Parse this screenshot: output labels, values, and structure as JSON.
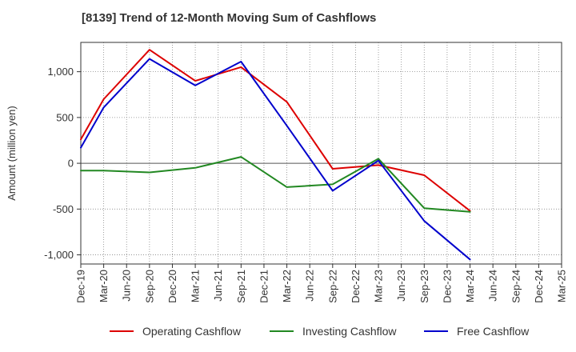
{
  "chart_data": {
    "type": "line",
    "title": "[8139]  Trend of 12-Month Moving Sum of Cashflows",
    "xlabel": "",
    "ylabel": "Amount (million yen)",
    "ylim": [
      -1100,
      1320
    ],
    "yticks": [
      1000,
      500,
      0,
      -500,
      -1000
    ],
    "ytick_labels": [
      "1,000",
      "500",
      "0",
      "-500",
      "-1,000"
    ],
    "categories": [
      "Dec-19",
      "Mar-20",
      "Jun-20",
      "Sep-20",
      "Dec-20",
      "Mar-21",
      "Jun-21",
      "Sep-21",
      "Dec-21",
      "Mar-22",
      "Jun-22",
      "Sep-22",
      "Dec-22",
      "Mar-23",
      "Jun-23",
      "Sep-23",
      "Dec-23",
      "Mar-24",
      "Jun-24",
      "Sep-24",
      "Dec-24",
      "Mar-25"
    ],
    "grid": true,
    "legend_position": "bottom",
    "series": [
      {
        "name": "Operating Cashflow",
        "color": "#dd0000",
        "values": [
          260,
          700,
          null,
          1240,
          null,
          900,
          null,
          1050,
          null,
          670,
          null,
          -60,
          null,
          -20,
          null,
          -130,
          null,
          -520,
          null,
          null,
          null,
          null
        ]
      },
      {
        "name": "Investing Cashflow",
        "color": "#228822",
        "values": [
          -80,
          -80,
          null,
          -100,
          null,
          -50,
          null,
          70,
          null,
          -260,
          null,
          -230,
          null,
          50,
          null,
          -490,
          null,
          -530,
          null,
          null,
          null,
          null
        ]
      },
      {
        "name": "Free Cashflow",
        "color": "#0000cc",
        "values": [
          170,
          610,
          null,
          1140,
          null,
          850,
          null,
          1110,
          null,
          410,
          null,
          -300,
          null,
          30,
          null,
          -630,
          null,
          -1050,
          null,
          null,
          null,
          null
        ]
      }
    ]
  }
}
